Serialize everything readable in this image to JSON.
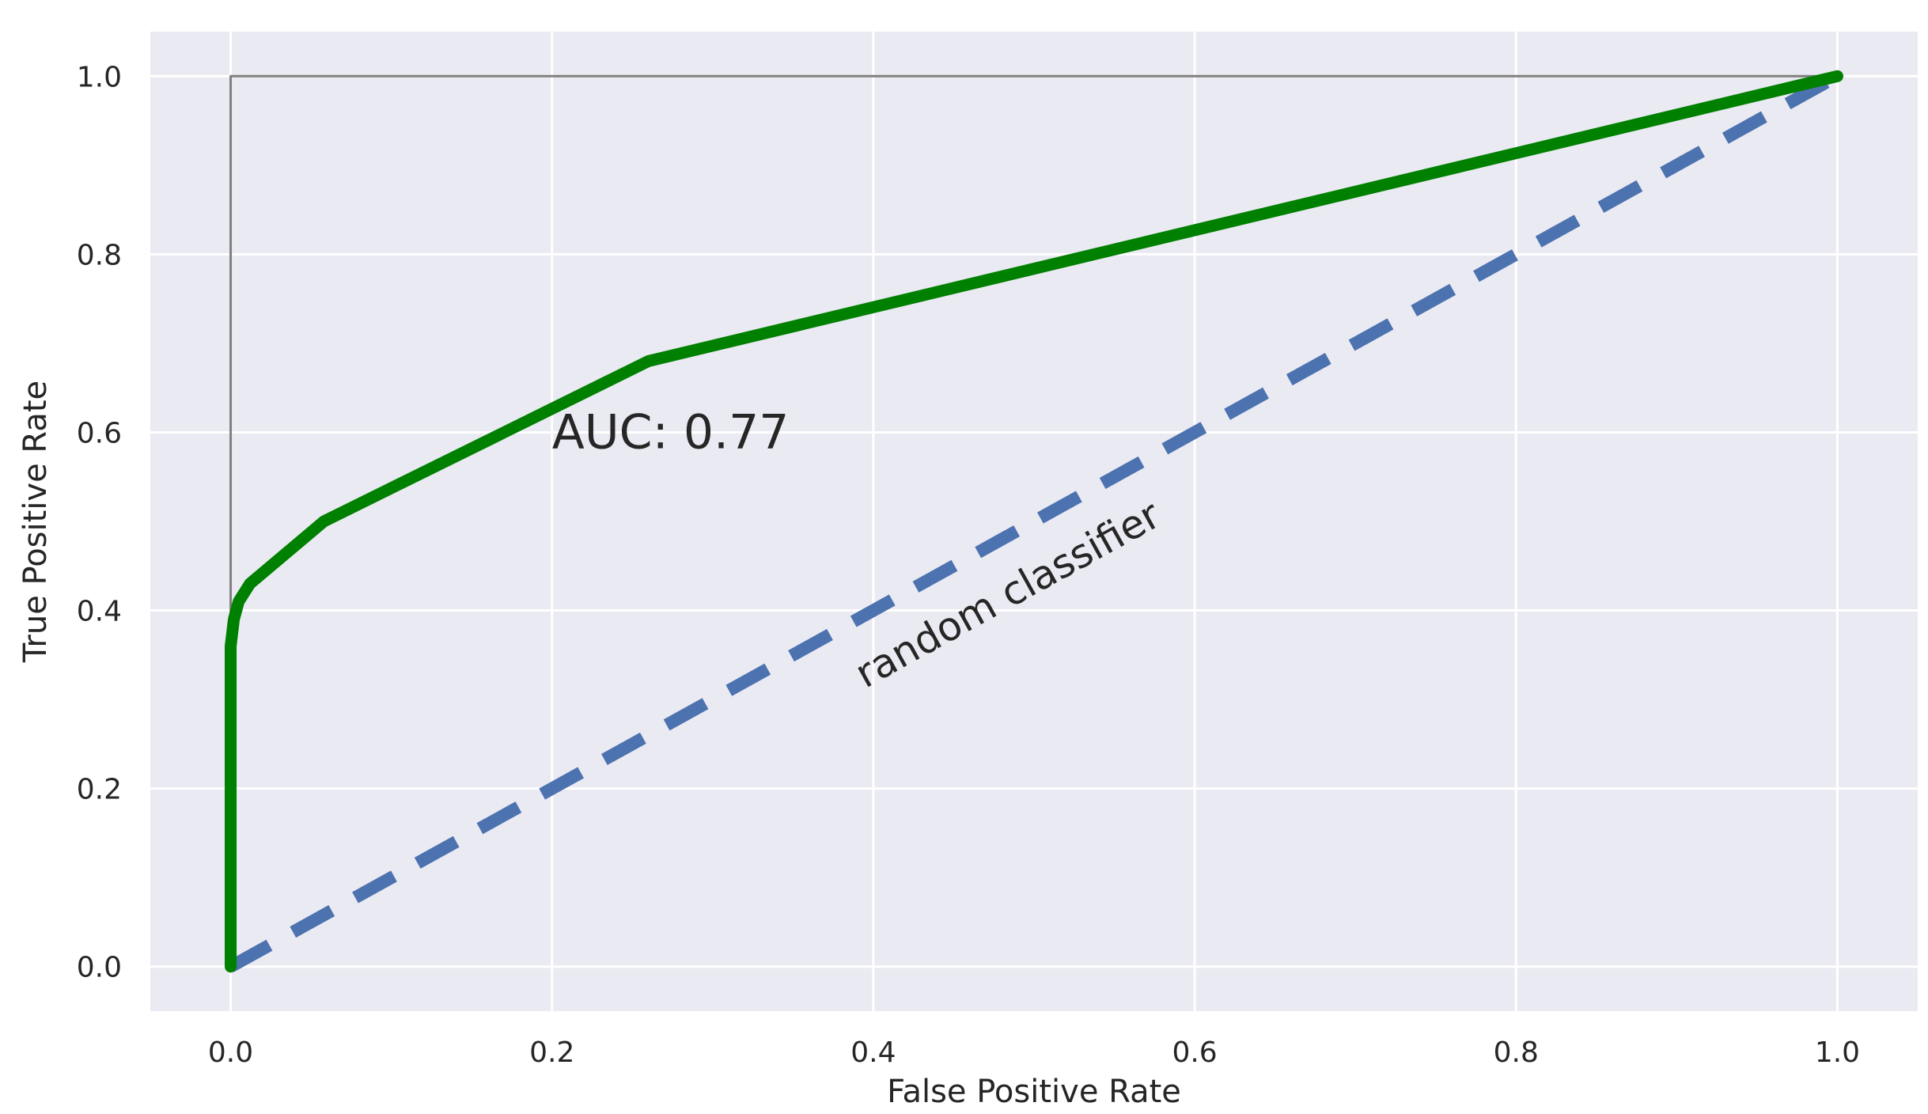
{
  "chart_data": {
    "type": "line",
    "title": "",
    "xlabel": "False Positive Rate",
    "ylabel": "True Positive Rate",
    "xlim": [
      -0.05,
      1.05
    ],
    "ylim": [
      -0.05,
      1.05
    ],
    "xticks": [
      0.0,
      0.2,
      0.4,
      0.6,
      0.8,
      1.0
    ],
    "yticks": [
      0.0,
      0.2,
      0.4,
      0.6,
      0.8,
      1.0
    ],
    "xtick_labels": [
      "0.0",
      "0.2",
      "0.4",
      "0.6",
      "0.8",
      "1.0"
    ],
    "ytick_labels": [
      "0.0",
      "0.2",
      "0.4",
      "0.6",
      "0.8",
      "1.0"
    ],
    "grid": true,
    "background": "#eaeaf2",
    "series": [
      {
        "style": "solid",
        "color": "#008000",
        "x": [
          0.0,
          0.0,
          0.002,
          0.005,
          0.012,
          0.058,
          0.26,
          1.0
        ],
        "y": [
          0.0,
          0.36,
          0.39,
          0.41,
          0.43,
          0.5,
          0.68,
          1.0
        ]
      },
      {
        "style": "dashed",
        "color": "#4c72b0",
        "x": [
          0.0,
          1.0
        ],
        "y": [
          0.0,
          1.0
        ]
      },
      {
        "style": "solid",
        "color": "#808080",
        "x": [
          0.0,
          0.0,
          1.0
        ],
        "y": [
          0.0,
          1.0,
          1.0
        ]
      }
    ],
    "annotations": [
      {
        "text": "AUC: 0.77",
        "x": 0.2,
        "y": 0.6
      },
      {
        "text": "random classifier",
        "x": 0.39,
        "y": 0.33
      }
    ]
  }
}
